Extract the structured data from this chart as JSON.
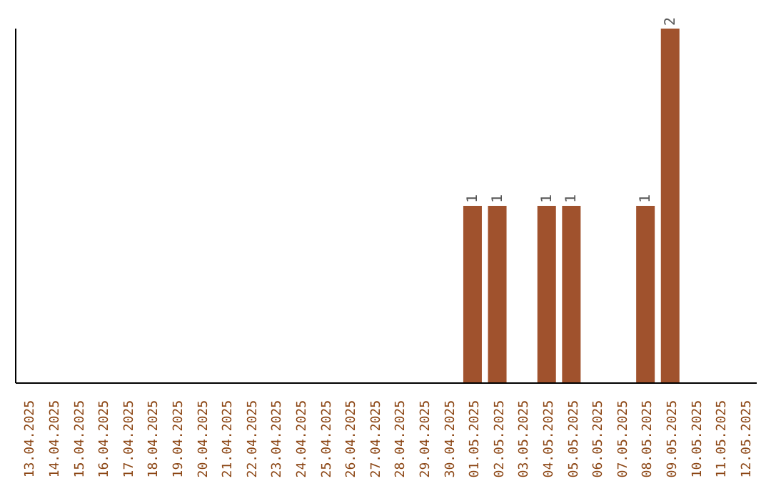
{
  "chart_data": {
    "type": "bar",
    "categories": [
      "13.04.2025",
      "14.04.2025",
      "15.04.2025",
      "16.04.2025",
      "17.04.2025",
      "18.04.2025",
      "19.04.2025",
      "20.04.2025",
      "21.04.2025",
      "22.04.2025",
      "23.04.2025",
      "24.04.2025",
      "25.04.2025",
      "26.04.2025",
      "27.04.2025",
      "28.04.2025",
      "29.04.2025",
      "30.04.2025",
      "01.05.2025",
      "02.05.2025",
      "03.05.2025",
      "04.05.2025",
      "05.05.2025",
      "06.05.2025",
      "07.05.2025",
      "08.05.2025",
      "09.05.2025",
      "10.05.2025",
      "11.05.2025",
      "12.05.2025"
    ],
    "values": [
      null,
      null,
      null,
      null,
      null,
      null,
      null,
      null,
      null,
      null,
      null,
      null,
      null,
      null,
      null,
      null,
      null,
      null,
      1,
      1,
      null,
      1,
      1,
      null,
      null,
      1,
      2,
      null,
      null,
      null
    ],
    "color": "#a0522d",
    "data_labels": true,
    "tick_labels": "x",
    "grid": false
  }
}
